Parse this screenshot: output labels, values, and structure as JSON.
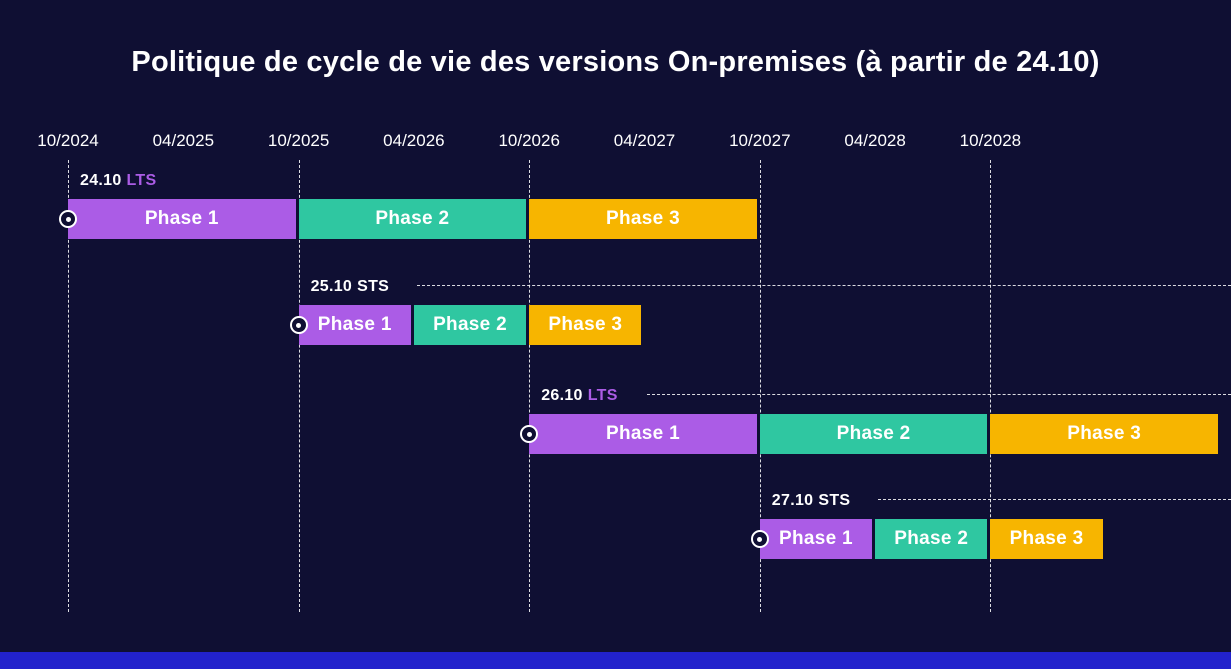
{
  "title": "Politique de cycle de vie des versions On-premises (à partir de 24.10)",
  "colors": {
    "background": "#0f0f33",
    "phase1": "#ab5ce6",
    "phase2": "#2fc7a1",
    "phase3": "#f7b500",
    "lts_label": "#ab5ce6",
    "sts_label": "#ffffff",
    "grid": "#ffffff",
    "footer": "#2222cc",
    "text": "#ffffff"
  },
  "chart_data": {
    "type": "gantt",
    "title": "Politique de cycle de vie des versions On-premises (à partir de 24.10)",
    "x_ticks": [
      "10/2024",
      "04/2025",
      "10/2025",
      "04/2026",
      "10/2026",
      "04/2027",
      "10/2027",
      "04/2028",
      "10/2028"
    ],
    "october_gridlines": [
      "10/2024",
      "10/2025",
      "10/2026",
      "10/2027",
      "10/2028"
    ],
    "grid": true,
    "legend": "none",
    "rows": [
      {
        "version": "24.10",
        "channel": "LTS",
        "start": "10/2024",
        "dashed_line": false,
        "phases": [
          {
            "label": "Phase 1",
            "start": "10/2024",
            "end": "10/2025"
          },
          {
            "label": "Phase 2",
            "start": "10/2025",
            "end": "10/2026"
          },
          {
            "label": "Phase 3",
            "start": "10/2026",
            "end": "10/2027"
          }
        ]
      },
      {
        "version": "25.10",
        "channel": "STS",
        "start": "10/2025",
        "dashed_line": true,
        "phases": [
          {
            "label": "Phase 1",
            "start": "10/2025",
            "end": "04/2026"
          },
          {
            "label": "Phase 2",
            "start": "04/2026",
            "end": "10/2026"
          },
          {
            "label": "Phase 3",
            "start": "10/2026",
            "end": "04/2027"
          }
        ]
      },
      {
        "version": "26.10",
        "channel": "LTS",
        "start": "10/2026",
        "dashed_line": true,
        "phases": [
          {
            "label": "Phase 1",
            "start": "10/2026",
            "end": "10/2027"
          },
          {
            "label": "Phase 2",
            "start": "10/2027",
            "end": "10/2028"
          },
          {
            "label": "Phase 3",
            "start": "10/2028",
            "end": "10/2029"
          }
        ]
      },
      {
        "version": "27.10",
        "channel": "STS",
        "start": "10/2027",
        "dashed_line": true,
        "phases": [
          {
            "label": "Phase 1",
            "start": "10/2027",
            "end": "04/2028"
          },
          {
            "label": "Phase 2",
            "start": "04/2028",
            "end": "10/2028"
          },
          {
            "label": "Phase 3",
            "start": "10/2028",
            "end": "04/2029"
          }
        ]
      }
    ]
  }
}
